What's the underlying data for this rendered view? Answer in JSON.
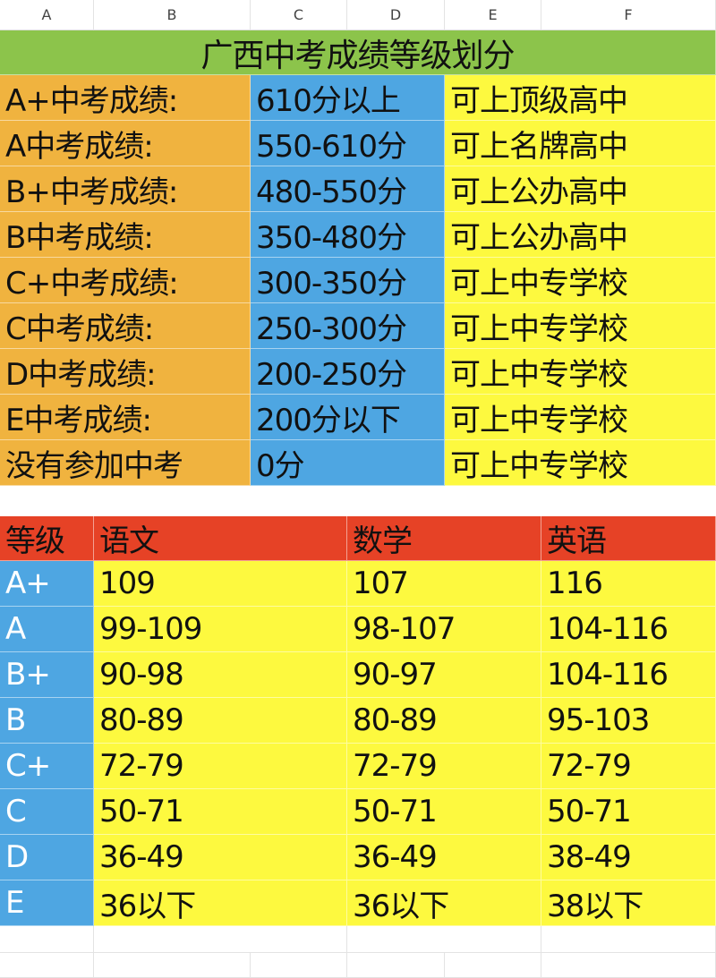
{
  "columns": [
    "A",
    "B",
    "C",
    "D",
    "E",
    "F"
  ],
  "title": "广西中考成绩等级划分",
  "levels": [
    {
      "label": "A+中考成绩:",
      "score": "610分以上",
      "school": "可上顶级高中"
    },
    {
      "label": "A中考成绩:",
      "score": "550-610分",
      "school": "可上名牌高中"
    },
    {
      "label": "B+中考成绩:",
      "score": "480-550分",
      "school": "可上公办高中"
    },
    {
      "label": "B中考成绩:",
      "score": "350-480分",
      "school": "可上公办高中"
    },
    {
      "label": "C+中考成绩:",
      "score": "300-350分",
      "school": "可上中专学校"
    },
    {
      "label": "C中考成绩:",
      "score": "250-300分",
      "school": "可上中专学校"
    },
    {
      "label": "D中考成绩:",
      "score": "200-250分",
      "school": "可上中专学校"
    },
    {
      "label": "E中考成绩:",
      "score": "200分以下",
      "school": "可上中专学校"
    },
    {
      "label": "没有参加中考",
      "score": "0分",
      "school": "可上中专学校"
    }
  ],
  "subjects": {
    "headers": [
      "等级",
      "语文",
      "数学",
      "英语"
    ],
    "rows": [
      [
        "A+",
        "109",
        "107",
        "116"
      ],
      [
        "A",
        "99-109",
        "98-107",
        "104-116"
      ],
      [
        "B+",
        "90-98",
        "90-97",
        "104-116"
      ],
      [
        "B",
        "80-89",
        "80-89",
        "95-103"
      ],
      [
        "C+",
        "72-79",
        "72-79",
        "72-79"
      ],
      [
        "C",
        "50-71",
        "50-71",
        "50-71"
      ],
      [
        "D",
        "36-49",
        "36-49",
        "38-49"
      ],
      [
        "E",
        "36以下",
        "36以下",
        "38以下"
      ]
    ]
  },
  "colors": {
    "title_bg": "#8cc44b",
    "label_bg": "#f0b33f",
    "score_bg": "#4ea6e2",
    "school_bg": "#fdf93f",
    "header_bg": "#e64226"
  }
}
